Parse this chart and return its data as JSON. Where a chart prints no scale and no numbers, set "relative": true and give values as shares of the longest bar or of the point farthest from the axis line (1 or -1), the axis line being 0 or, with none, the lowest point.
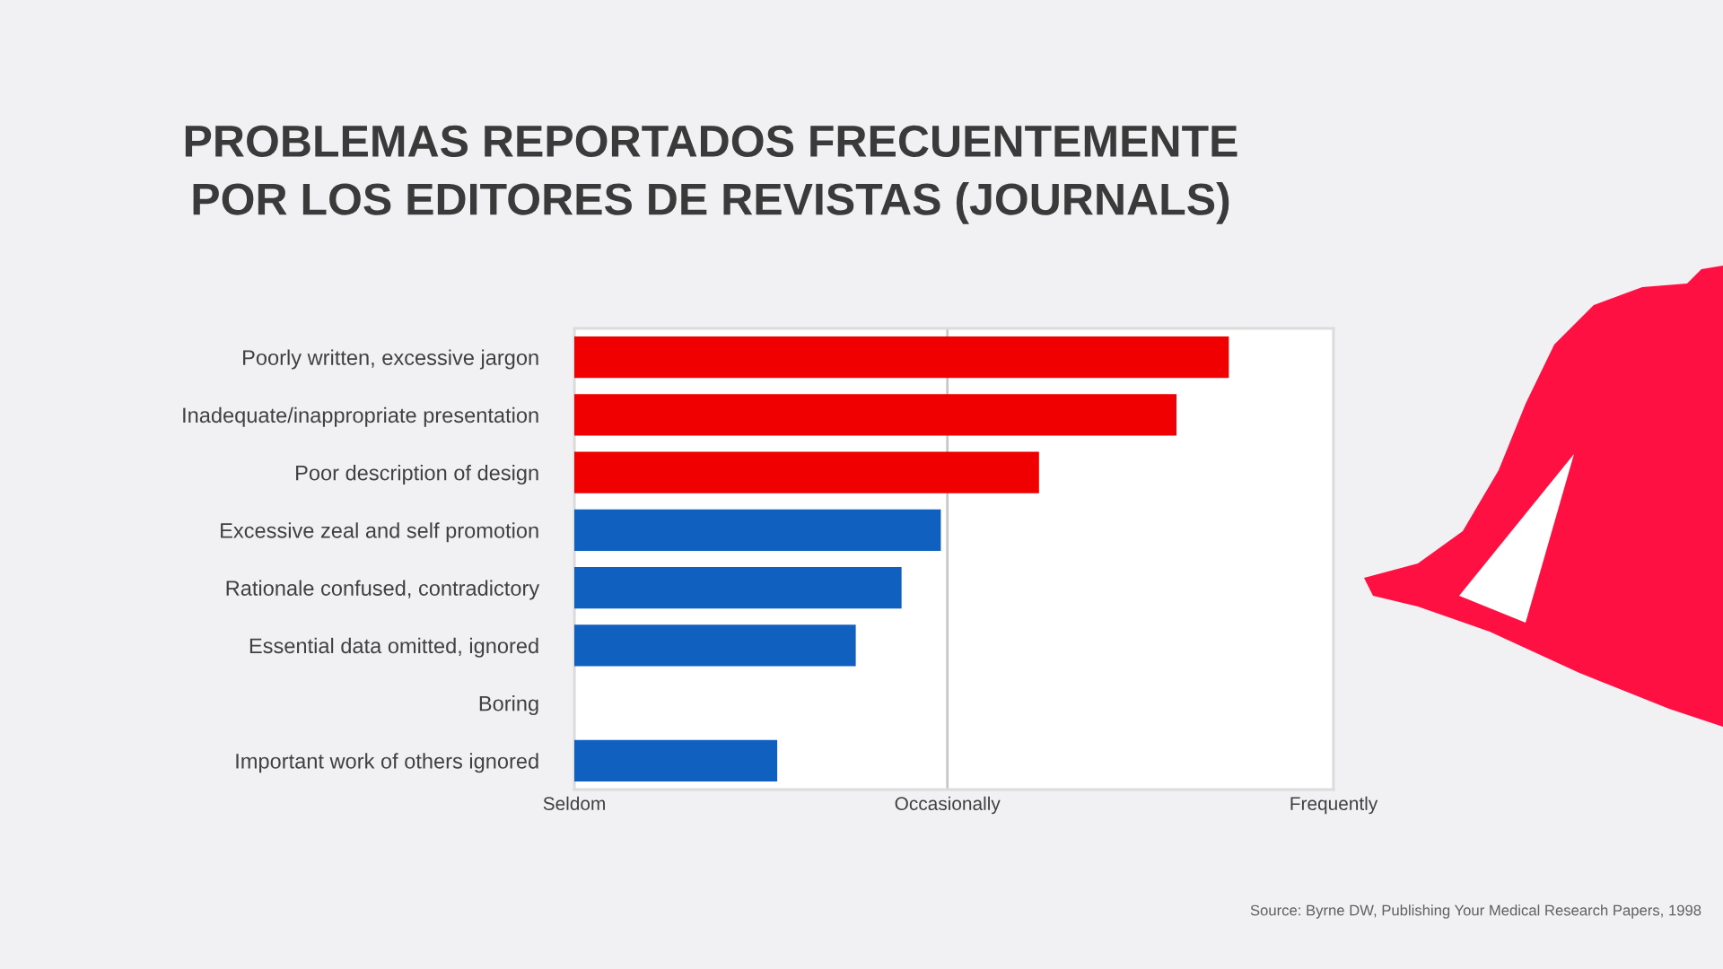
{
  "chart_data": {
    "type": "bar",
    "orientation": "horizontal",
    "relative": true,
    "title": "PROBLEMAS REPORTADOS FRECUENTEMENTE\nPOR LOS EDITORES DE REVISTAS (JOURNALS)",
    "categories": [
      "Poorly written, excessive jargon",
      "Inadequate/inappropriate presentation",
      "Poor description of design",
      "Excessive zeal and self promotion",
      "Rationale confused, contradictory",
      "Essential data omitted, ignored",
      "Boring",
      "Important work of others ignored"
    ],
    "values": [
      1,
      0.92,
      0.71,
      0.56,
      0.5,
      0.43,
      null,
      0.31
    ],
    "colors": [
      "#f00000",
      "#f00000",
      "#f00000",
      "#1060c0",
      "#1060c0",
      "#1060c0",
      "#1060c0",
      "#1060c0"
    ],
    "ref_lines": [
      {
        "axis": "x",
        "value": 0,
        "label": "Seldom",
        "color": "#d8d8d8"
      },
      {
        "axis": "x",
        "value": 0.57,
        "label": "Occasionally",
        "color": "#c8c8c8"
      },
      {
        "axis": "x",
        "value": 1.16,
        "label": "Frequently",
        "color": "#d8d8d8"
      }
    ],
    "annotations": [
      "Source: Byrne DW, Publishing Your Medical Research Papers, 1998"
    ]
  }
}
